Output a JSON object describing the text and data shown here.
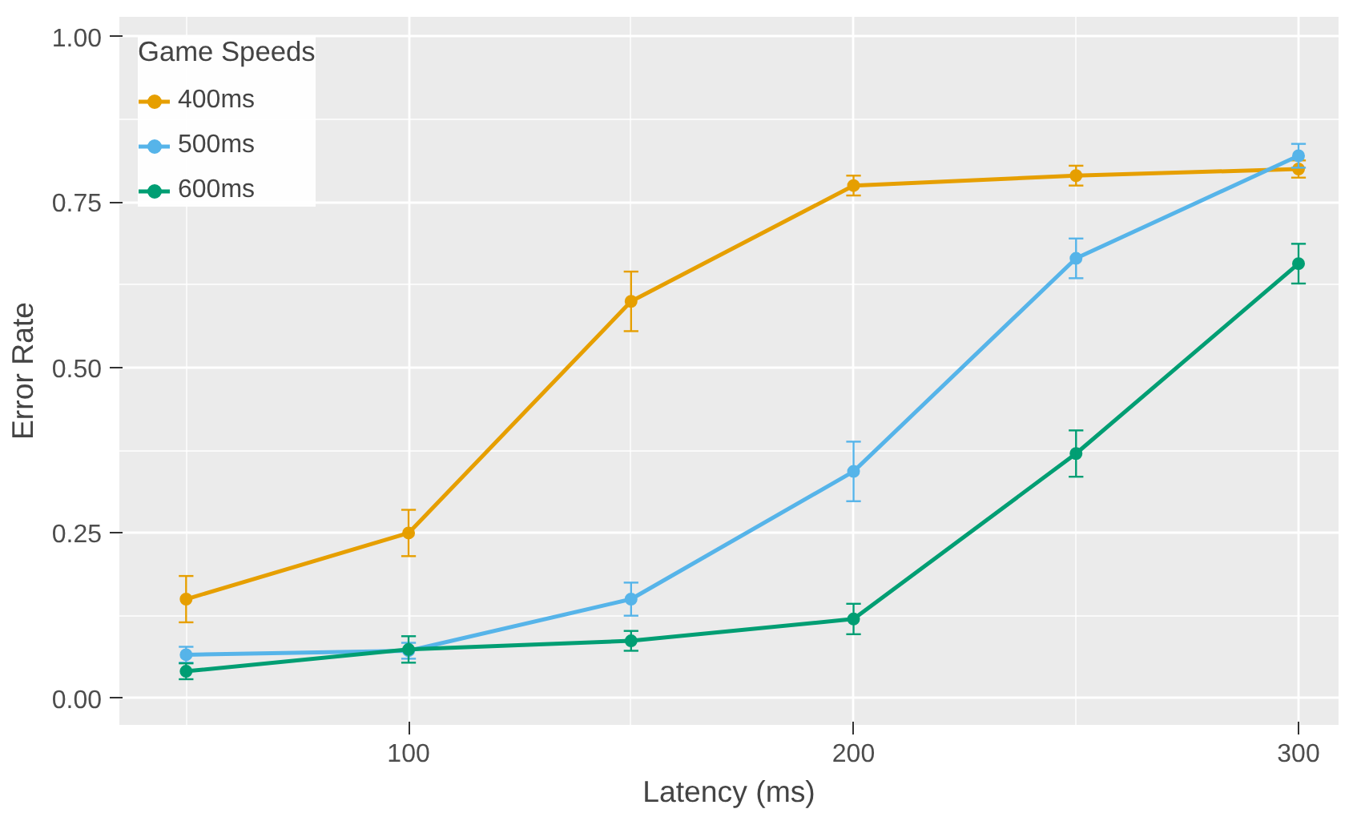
{
  "chart_data": {
    "type": "line",
    "xlabel": "Latency (ms)",
    "ylabel": "Error Rate",
    "legend_title": "Game Speeds",
    "x": [
      50,
      100,
      150,
      200,
      250,
      300
    ],
    "series": [
      {
        "name": "400ms",
        "color": "#e69f00",
        "values": [
          0.15,
          0.25,
          0.6,
          0.775,
          0.79,
          0.8
        ],
        "errors": [
          0.035,
          0.035,
          0.045,
          0.015,
          0.015,
          0.013
        ]
      },
      {
        "name": "500ms",
        "color": "#56b4e9",
        "values": [
          0.066,
          0.072,
          0.15,
          0.343,
          0.665,
          0.82
        ],
        "errors": [
          0.012,
          0.012,
          0.025,
          0.045,
          0.03,
          0.018
        ]
      },
      {
        "name": "600ms",
        "color": "#009e73",
        "values": [
          0.041,
          0.074,
          0.087,
          0.12,
          0.37,
          0.657
        ],
        "errors": [
          0.012,
          0.02,
          0.015,
          0.023,
          0.035,
          0.03
        ]
      }
    ],
    "xlim": [
      35,
      309
    ],
    "ylim": [
      -0.04,
      1.03
    ],
    "xticks": [
      100,
      200,
      300
    ],
    "yticks": [
      {
        "value": 0,
        "label": "0.00"
      },
      {
        "value": 0.25,
        "label": "0.25"
      },
      {
        "value": 0.5,
        "label": "0.50"
      },
      {
        "value": 0.75,
        "label": "0.75"
      },
      {
        "value": 1,
        "label": "1.00"
      }
    ],
    "grid": true,
    "legend": "top left",
    "marker": "circle",
    "line_style": "solid"
  }
}
